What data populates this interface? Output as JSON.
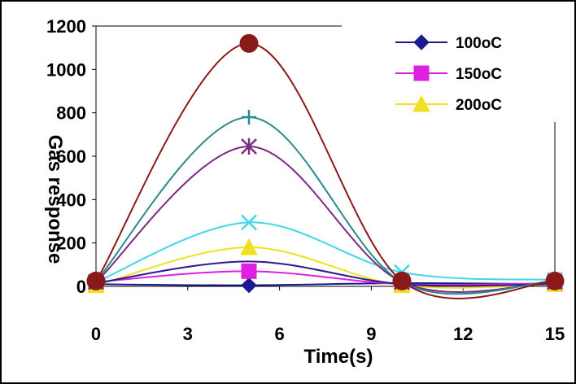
{
  "chart_data": {
    "type": "line",
    "xlabel": "Time(s)",
    "ylabel": "Gas response",
    "xlim": [
      0,
      15
    ],
    "ylim": [
      0,
      1200
    ],
    "x_ticks": [
      "0",
      "3",
      "6",
      "9",
      "12",
      "15"
    ],
    "y_ticks": [
      "0",
      "200",
      "400",
      "600",
      "800",
      "1000",
      "1200"
    ],
    "legend_position": "top-right",
    "x": [
      0,
      5,
      10,
      15
    ],
    "series": [
      {
        "name": "100oC",
        "color": "#1a1a8c",
        "marker": "diamond",
        "values": [
          10,
          5,
          15,
          10
        ]
      },
      {
        "name": "150oC",
        "color": "#e020e0",
        "marker": "square",
        "values": [
          20,
          70,
          10,
          15
        ]
      },
      {
        "name": "200oC",
        "color": "#f0e020",
        "marker": "triangle",
        "values": [
          5,
          180,
          5,
          10
        ]
      },
      {
        "color": "#2a1a90",
        "marker": "none",
        "values": [
          15,
          115,
          10,
          10
        ]
      },
      {
        "color": "#40d8e8",
        "marker": "x",
        "values": [
          20,
          295,
          65,
          30
        ]
      },
      {
        "color": "#7a2a80",
        "marker": "star",
        "values": [
          20,
          645,
          20,
          20
        ]
      },
      {
        "color": "#2a8a8a",
        "marker": "plus",
        "values": [
          25,
          780,
          20,
          25
        ]
      },
      {
        "color": "#8a1a1a",
        "marker": "circle",
        "values": [
          25,
          1120,
          25,
          25
        ]
      }
    ]
  }
}
